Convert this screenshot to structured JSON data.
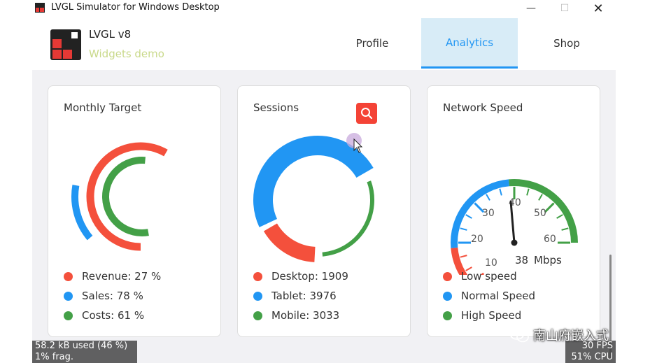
{
  "window": {
    "title": "LVGL Simulator for Windows Desktop",
    "min_glyph": "—",
    "max_glyph": "☐",
    "close_glyph": "✕"
  },
  "header": {
    "app_name": "LVGL v8",
    "app_subtitle": "Widgets demo"
  },
  "tabs": [
    {
      "label": "Profile",
      "active": false
    },
    {
      "label": "Analytics",
      "active": true
    },
    {
      "label": "Shop",
      "active": false
    }
  ],
  "colors": {
    "red": "#f4503c",
    "blue": "#2196f3",
    "green": "#43a047",
    "accent_active_bg": "#d8ecf7"
  },
  "cards": {
    "monthly": {
      "title": "Monthly Target",
      "legend": [
        {
          "label": "Revenue: 27 %",
          "color": "#f4503c"
        },
        {
          "label": "Sales: 78 %",
          "color": "#2196f3"
        },
        {
          "label": "Costs: 61 %",
          "color": "#43a047"
        }
      ]
    },
    "sessions": {
      "title": "Sessions",
      "legend": [
        {
          "label": "Desktop: 1909",
          "color": "#f4503c"
        },
        {
          "label": "Tablet: 3976",
          "color": "#2196f3"
        },
        {
          "label": "Mobile: 3033",
          "color": "#43a047"
        }
      ]
    },
    "network": {
      "title": "Network Speed",
      "value_text": "38",
      "unit": "Mbps",
      "scale_labels": [
        "10",
        "20",
        "30",
        "40",
        "50",
        "60"
      ],
      "legend": [
        {
          "label": "Low speed",
          "color": "#f4503c"
        },
        {
          "label": "Normal Speed",
          "color": "#2196f3"
        },
        {
          "label": "High Speed",
          "color": "#43a047"
        }
      ]
    }
  },
  "overlays": {
    "mem_line1": "58.2 kB used (46 %)",
    "mem_line2": "1% frag.",
    "fps": "30 FPS",
    "cpu": "51% CPU",
    "watermark": "南山府嵌入式"
  }
}
